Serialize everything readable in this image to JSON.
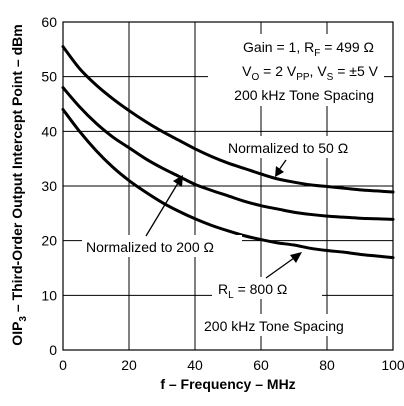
{
  "chart_data": {
    "type": "line",
    "xlabel": "f – Frequency – MHz",
    "ylabel": {
      "prefix": "OIP",
      "subscript": "3",
      "suffix": " – Third-Order Output Intercept Point – dBm"
    },
    "xlim": [
      0,
      100
    ],
    "ylim": [
      0,
      60
    ],
    "xticks": [
      "0",
      "20",
      "40",
      "60",
      "80",
      "100"
    ],
    "yticks": [
      "0",
      "10",
      "20",
      "30",
      "40",
      "50",
      "60"
    ],
    "grid": true,
    "series": [
      {
        "name": "Normalized to 50 Ω",
        "x": [
          0,
          5,
          10,
          15,
          20,
          25,
          30,
          35,
          40,
          45,
          50,
          55,
          60,
          65,
          70,
          75,
          80,
          85,
          90,
          95,
          100
        ],
        "y": [
          55.5,
          51.5,
          48.5,
          46,
          43.8,
          41.8,
          40,
          38.4,
          36.8,
          35.4,
          34.2,
          33.2,
          32.2,
          31.3,
          30.7,
          30.2,
          29.9,
          29.6,
          29.3,
          29.1,
          28.9
        ]
      },
      {
        "name": "Normalized to 200 Ω",
        "x": [
          0,
          5,
          10,
          15,
          20,
          25,
          30,
          35,
          40,
          45,
          50,
          55,
          60,
          65,
          70,
          75,
          80,
          85,
          90,
          95,
          100
        ],
        "y": [
          48,
          44.5,
          41.5,
          39,
          37,
          35,
          33.3,
          31.8,
          30.3,
          29.2,
          28.2,
          27.2,
          26.4,
          25.8,
          25.2,
          24.8,
          24.5,
          24.3,
          24.1,
          24,
          23.9
        ]
      },
      {
        "name": "R_L = 800 Ω",
        "x": [
          0,
          5,
          10,
          15,
          20,
          25,
          30,
          35,
          40,
          45,
          50,
          55,
          60,
          65,
          70,
          75,
          80,
          85,
          90,
          95,
          100
        ],
        "y": [
          44,
          40,
          36.5,
          33.5,
          31,
          28.9,
          27,
          25.4,
          24,
          22.8,
          21.8,
          20.9,
          20.2,
          19.6,
          19.2,
          18.6,
          18.2,
          17.9,
          17.5,
          17.2,
          16.9
        ]
      }
    ],
    "annotations": {
      "conditions_line1": "Gain = 1, R",
      "conditions_line1_sub": "F",
      "conditions_line1_end": " = 499 Ω",
      "conditions_line2_a": "V",
      "conditions_line2_a_sub": "O",
      "conditions_line2_b": " = 2 V",
      "conditions_line2_b_sub": "PP",
      "conditions_line2_c": ", V",
      "conditions_line2_c_sub": "S",
      "conditions_line2_d": " = ±5 V",
      "conditions_line3": "200 kHz Tone Spacing",
      "label_50": "Normalized to 50 Ω",
      "label_200": "Normalized to 200 Ω",
      "label_800_a": "R",
      "label_800_sub": "L",
      "label_800_b": " = 800 Ω",
      "bottom_note": "200 kHz Tone Spacing"
    }
  }
}
